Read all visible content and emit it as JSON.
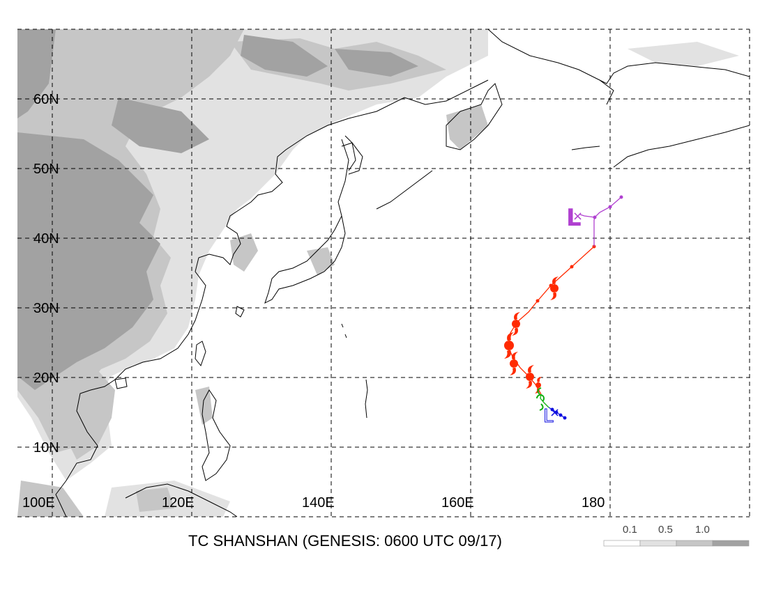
{
  "title": "TC SHANSHAN (GENESIS: 0600 UTC 09/17)",
  "lat_labels": [
    "60N",
    "50N",
    "40N",
    "30N",
    "20N",
    "10N"
  ],
  "lon_labels": [
    "100E",
    "120E",
    "140E",
    "160E",
    "180"
  ],
  "legend": {
    "labels": [
      "0.1",
      "0.5",
      "1.0"
    ],
    "colors": [
      "#ffffff",
      "#e2e2e2",
      "#c6c6c6",
      "#a2a2a2"
    ]
  },
  "markers": {
    "low_symbol": "L",
    "dissipation_symbol": "×"
  },
  "track_colors": {
    "genesis_early": "#1010e0",
    "pre_storm": "#10b010",
    "storm": "#ff2a00",
    "extratropical": "#b040d0"
  }
}
